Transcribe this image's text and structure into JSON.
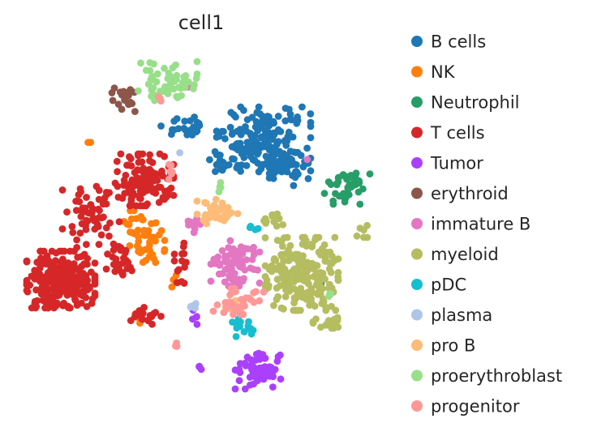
{
  "chart_data": {
    "type": "scatter",
    "title": "cell1",
    "xlabel": "",
    "ylabel": "",
    "grid": false,
    "axes_visible": false,
    "legend_position": "right",
    "series": [
      {
        "name": "B cells",
        "color": "#1f77b4",
        "clusters": [
          {
            "cx": 325,
            "cy": 172,
            "rx": 58,
            "ry": 40,
            "n": 170
          },
          {
            "cx": 352,
            "cy": 205,
            "rx": 28,
            "ry": 26,
            "n": 50
          },
          {
            "cx": 218,
            "cy": 158,
            "rx": 28,
            "ry": 14,
            "n": 22
          },
          {
            "cx": 276,
            "cy": 200,
            "rx": 18,
            "ry": 16,
            "n": 14
          }
        ]
      },
      {
        "name": "NK",
        "color": "#ff7f0e",
        "clusters": [
          {
            "cx": 178,
            "cy": 292,
            "rx": 25,
            "ry": 32,
            "n": 55
          },
          {
            "cx": 168,
            "cy": 392,
            "rx": 9,
            "ry": 9,
            "n": 6
          },
          {
            "cx": 213,
            "cy": 348,
            "rx": 6,
            "ry": 9,
            "n": 4
          },
          {
            "cx": 110,
            "cy": 178,
            "rx": 4,
            "ry": 3,
            "n": 2
          }
        ]
      },
      {
        "name": "Neutrophil",
        "color": "#279e68",
        "clusters": [
          {
            "cx": 428,
            "cy": 228,
            "rx": 28,
            "ry": 24,
            "n": 45
          },
          {
            "cx": 395,
            "cy": 348,
            "rx": 5,
            "ry": 5,
            "n": 2
          }
        ]
      },
      {
        "name": "T cells",
        "color": "#d62728",
        "clusters": [
          {
            "cx": 75,
            "cy": 345,
            "rx": 42,
            "ry": 35,
            "n": 270
          },
          {
            "cx": 178,
            "cy": 222,
            "rx": 36,
            "ry": 32,
            "n": 120
          },
          {
            "cx": 112,
            "cy": 268,
            "rx": 35,
            "ry": 38,
            "n": 60
          },
          {
            "cx": 150,
            "cy": 320,
            "rx": 20,
            "ry": 28,
            "n": 30
          },
          {
            "cx": 180,
            "cy": 390,
            "rx": 22,
            "ry": 12,
            "n": 18
          },
          {
            "cx": 225,
            "cy": 330,
            "rx": 10,
            "ry": 30,
            "n": 14
          }
        ]
      },
      {
        "name": "Tumor",
        "color": "#aa40fc",
        "clusters": [
          {
            "cx": 318,
            "cy": 458,
            "rx": 28,
            "ry": 22,
            "n": 60
          },
          {
            "cx": 242,
            "cy": 395,
            "rx": 6,
            "ry": 14,
            "n": 5
          },
          {
            "cx": 245,
            "cy": 455,
            "rx": 4,
            "ry": 10,
            "n": 3
          }
        ]
      },
      {
        "name": "erythroid",
        "color": "#8c564b",
        "clusters": [
          {
            "cx": 155,
            "cy": 122,
            "rx": 17,
            "ry": 18,
            "n": 22
          }
        ]
      },
      {
        "name": "immature B",
        "color": "#e377c2",
        "clusters": [
          {
            "cx": 290,
            "cy": 325,
            "rx": 30,
            "ry": 28,
            "n": 80
          },
          {
            "cx": 240,
            "cy": 275,
            "rx": 10,
            "ry": 12,
            "n": 12
          },
          {
            "cx": 232,
            "cy": 108,
            "rx": 3,
            "ry": 3,
            "n": 1
          },
          {
            "cx": 380,
            "cy": 198,
            "rx": 3,
            "ry": 3,
            "n": 1
          }
        ]
      },
      {
        "name": "myeloid",
        "color": "#b5bd61",
        "clusters": [
          {
            "cx": 372,
            "cy": 338,
            "rx": 45,
            "ry": 45,
            "n": 220
          },
          {
            "cx": 338,
            "cy": 272,
            "rx": 20,
            "ry": 8,
            "n": 14
          },
          {
            "cx": 408,
            "cy": 395,
            "rx": 22,
            "ry": 10,
            "n": 18
          },
          {
            "cx": 448,
            "cy": 283,
            "rx": 8,
            "ry": 10,
            "n": 6
          }
        ]
      },
      {
        "name": "pDC",
        "color": "#17becf",
        "clusters": [
          {
            "cx": 300,
            "cy": 400,
            "rx": 20,
            "ry": 18,
            "n": 16
          },
          {
            "cx": 312,
            "cy": 282,
            "rx": 8,
            "ry": 6,
            "n": 4
          }
        ]
      },
      {
        "name": "plasma",
        "color": "#aec7e8",
        "clusters": [
          {
            "cx": 222,
            "cy": 190,
            "rx": 3,
            "ry": 3,
            "n": 1
          },
          {
            "cx": 238,
            "cy": 378,
            "rx": 8,
            "ry": 8,
            "n": 5
          }
        ]
      },
      {
        "name": "pro B",
        "color": "#ffbb78",
        "clusters": [
          {
            "cx": 268,
            "cy": 262,
            "rx": 25,
            "ry": 16,
            "n": 45
          },
          {
            "cx": 285,
            "cy": 378,
            "rx": 12,
            "ry": 8,
            "n": 8
          }
        ]
      },
      {
        "name": "proerythroblast",
        "color": "#98df8a",
        "clusters": [
          {
            "cx": 205,
            "cy": 100,
            "rx": 38,
            "ry": 24,
            "n": 55
          },
          {
            "cx": 272,
            "cy": 232,
            "rx": 6,
            "ry": 8,
            "n": 4
          },
          {
            "cx": 408,
            "cy": 362,
            "rx": 6,
            "ry": 6,
            "n": 3
          }
        ]
      },
      {
        "name": "progenitor",
        "color": "#ff9896",
        "clusters": [
          {
            "cx": 295,
            "cy": 372,
            "rx": 32,
            "ry": 16,
            "n": 32
          },
          {
            "cx": 212,
            "cy": 212,
            "rx": 6,
            "ry": 12,
            "n": 6
          },
          {
            "cx": 198,
            "cy": 122,
            "rx": 6,
            "ry": 4,
            "n": 3
          },
          {
            "cx": 218,
            "cy": 425,
            "rx": 4,
            "ry": 10,
            "n": 4
          }
        ]
      }
    ]
  }
}
